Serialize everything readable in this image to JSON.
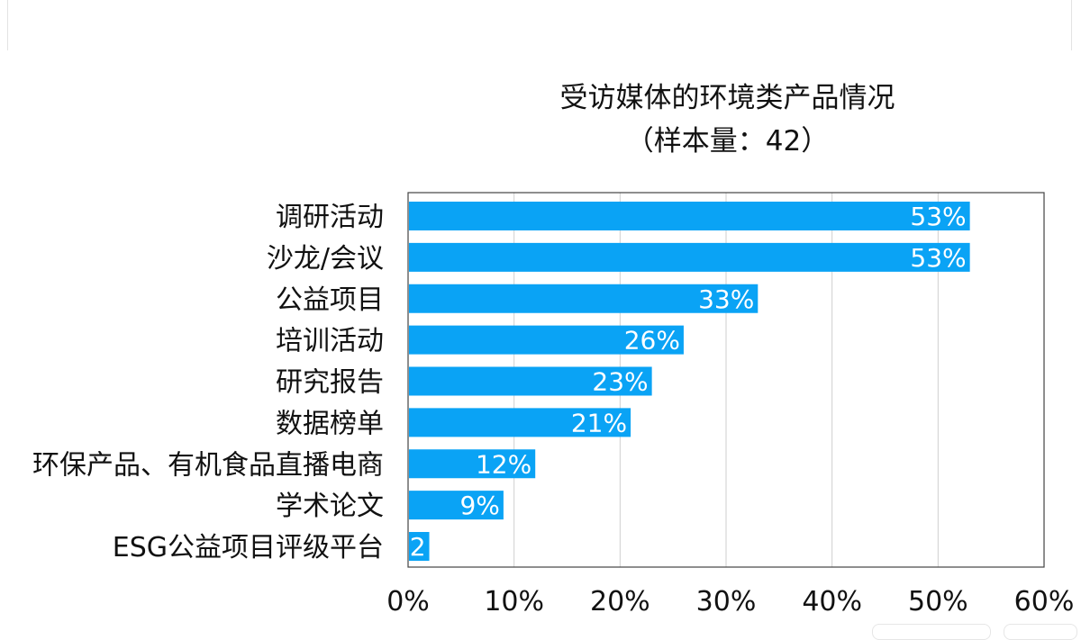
{
  "chart_data": {
    "type": "bar",
    "orientation": "horizontal",
    "title": "受访媒体的环境类产品情况",
    "subtitle": "（样本量：42）",
    "categories": [
      "调研活动",
      "沙龙/会议",
      "公益项目",
      "培训活动",
      "研究报告",
      "数据榜单",
      "环保产品、有机食品直播电商",
      "学术论文",
      "ESG公益项目评级平台"
    ],
    "values": [
      53,
      53,
      33,
      26,
      23,
      21,
      12,
      9,
      2
    ],
    "value_labels": [
      "53%",
      "53%",
      "33%",
      "26%",
      "23%",
      "21%",
      "12%",
      "9%",
      "2"
    ],
    "xlim": [
      0,
      60
    ],
    "xticks": [
      0,
      10,
      20,
      30,
      40,
      50,
      60
    ],
    "xtick_labels": [
      "0%",
      "10%",
      "20%",
      "30%",
      "40%",
      "50%",
      "60%"
    ],
    "grid": true,
    "bar_color": "#0aa3f5"
  }
}
